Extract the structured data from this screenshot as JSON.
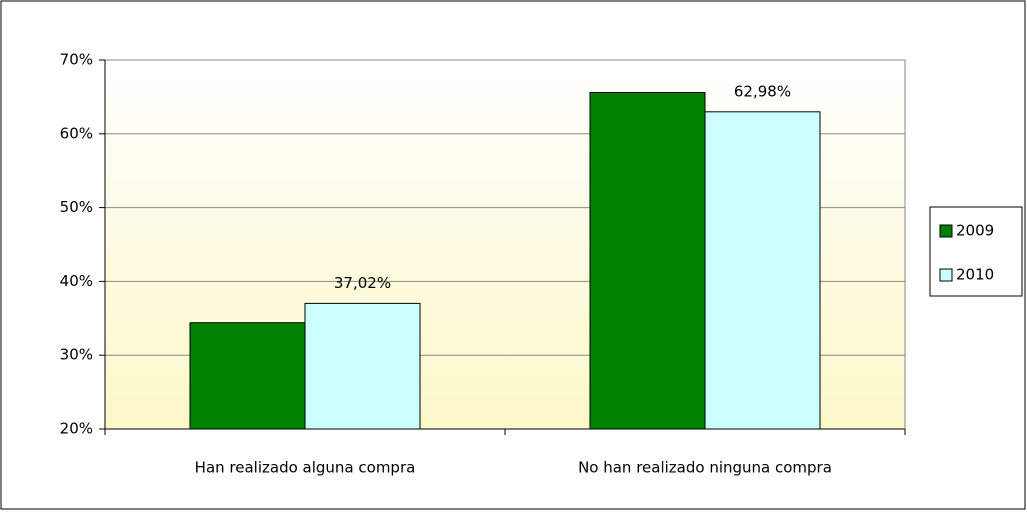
{
  "chart_data": {
    "type": "bar",
    "categories": [
      "Han realizado alguna compra",
      "No han realizado ninguna compra"
    ],
    "series": [
      {
        "name": "2009",
        "color": "#008000",
        "values": [
          34.4,
          65.6
        ]
      },
      {
        "name": "2010",
        "color": "#ccffff",
        "values": [
          37.02,
          62.98
        ],
        "value_labels": [
          "37,02%",
          "62,98%"
        ]
      }
    ],
    "ylim": [
      20,
      70
    ],
    "yticks": [
      {
        "value": 20,
        "label": "20%"
      },
      {
        "value": 30,
        "label": "30%"
      },
      {
        "value": 40,
        "label": "40%"
      },
      {
        "value": 50,
        "label": "50%"
      },
      {
        "value": 60,
        "label": "60%"
      },
      {
        "value": 70,
        "label": "70%"
      }
    ],
    "grid": true,
    "legend": "right"
  }
}
